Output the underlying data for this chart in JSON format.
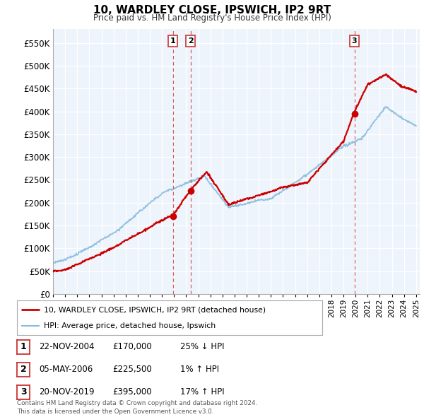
{
  "title": "10, WARDLEY CLOSE, IPSWICH, IP2 9RT",
  "subtitle": "Price paid vs. HM Land Registry's House Price Index (HPI)",
  "ylabel_ticks": [
    "£0",
    "£50K",
    "£100K",
    "£150K",
    "£200K",
    "£250K",
    "£300K",
    "£350K",
    "£400K",
    "£450K",
    "£500K",
    "£550K"
  ],
  "ytick_values": [
    0,
    50000,
    100000,
    150000,
    200000,
    250000,
    300000,
    350000,
    400000,
    450000,
    500000,
    550000
  ],
  "ylim": [
    0,
    580000
  ],
  "xlim_start": 1995.0,
  "xlim_end": 2025.3,
  "sales": [
    {
      "date": 2004.9,
      "price": 170000,
      "label": "1"
    },
    {
      "date": 2006.37,
      "price": 225500,
      "label": "2"
    },
    {
      "date": 2019.9,
      "price": 395000,
      "label": "3"
    }
  ],
  "legend_entries": [
    {
      "label": "10, WARDLEY CLOSE, IPSWICH, IP2 9RT (detached house)",
      "color": "#cc0000",
      "lw": 2.0
    },
    {
      "label": "HPI: Average price, detached house, Ipswich",
      "color": "#88bbdd",
      "lw": 1.5
    }
  ],
  "table_rows": [
    {
      "num": "1",
      "date": "22-NOV-2004",
      "price": "£170,000",
      "hpi": "25% ↓ HPI"
    },
    {
      "num": "2",
      "date": "05-MAY-2006",
      "price": "£225,500",
      "hpi": "1% ↑ HPI"
    },
    {
      "num": "3",
      "date": "20-NOV-2019",
      "price": "£395,000",
      "hpi": "17% ↑ HPI"
    }
  ],
  "footnote": "Contains HM Land Registry data © Crown copyright and database right 2024.\nThis data is licensed under the Open Government Licence v3.0.",
  "background_color": "#ffffff",
  "plot_bg_color": "#eef4fb",
  "grid_color": "#ffffff",
  "red_line_color": "#cc0000",
  "blue_line_color": "#88bbdd",
  "vline_color": "#cc4444"
}
